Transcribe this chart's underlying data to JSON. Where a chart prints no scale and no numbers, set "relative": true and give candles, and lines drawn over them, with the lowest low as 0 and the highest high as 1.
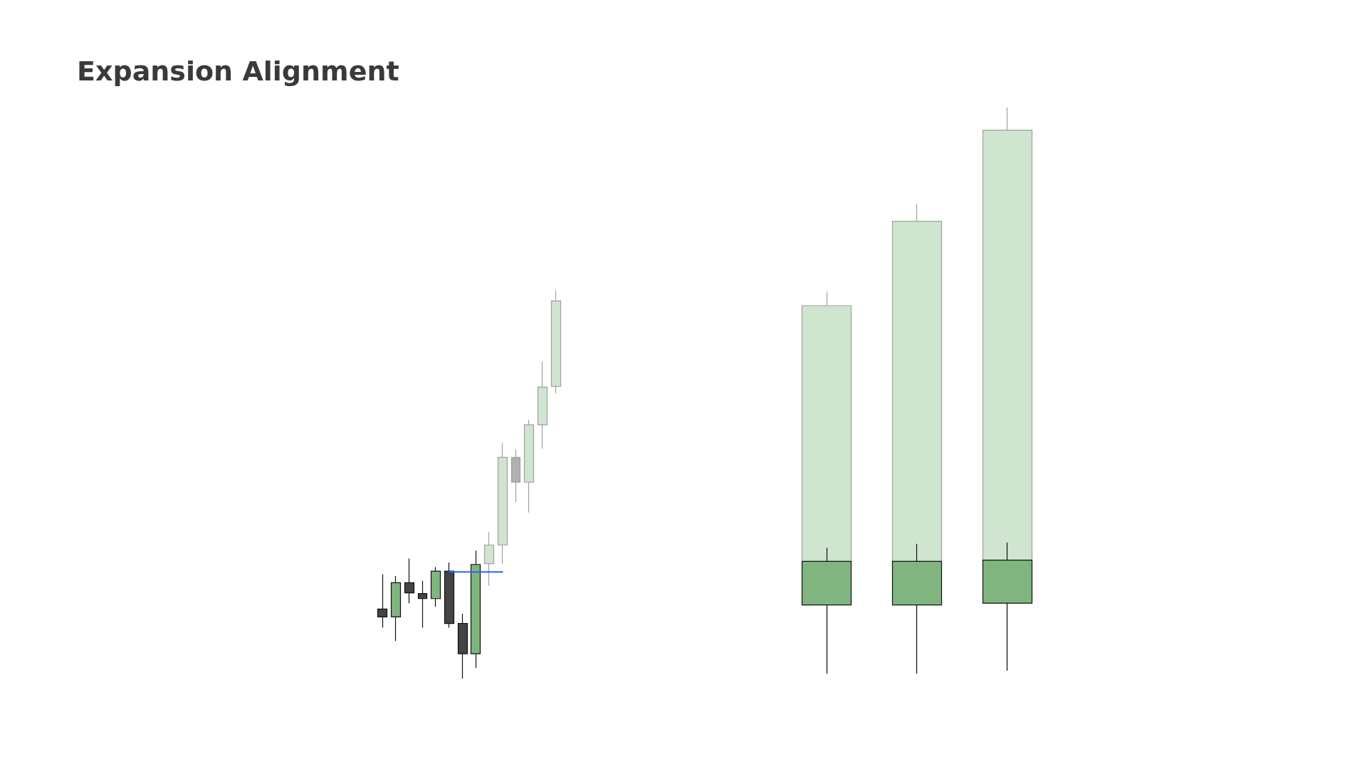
{
  "chart_data": [
    {
      "type": "candlestick",
      "title": "Expansion Alignment",
      "relative": true,
      "categories": [
        null,
        null,
        null,
        null,
        null,
        null,
        null,
        null,
        null,
        null,
        null,
        null,
        null,
        null
      ],
      "ohlc": [
        [
          0.179,
          0.269,
          0.131,
          0.159
        ],
        [
          0.159,
          0.264,
          0.097,
          0.247
        ],
        [
          0.247,
          0.309,
          0.194,
          0.221
        ],
        [
          0.219,
          0.252,
          0.131,
          0.206
        ],
        [
          0.206,
          0.287,
          0.185,
          0.277
        ],
        [
          0.277,
          0.299,
          0.131,
          0.142
        ],
        [
          0.142,
          0.167,
          0,
          0.064
        ],
        [
          0.064,
          0.33,
          0.027,
          0.294
        ],
        [
          0.296,
          0.377,
          0.239,
          0.344
        ],
        [
          0.344,
          0.607,
          0.295,
          0.57
        ],
        [
          0.57,
          0.59,
          0.455,
          0.506
        ],
        [
          0.506,
          0.667,
          0.428,
          0.654
        ],
        [
          0.654,
          0.817,
          0.592,
          0.751
        ],
        [
          0.753,
          1,
          0.735,
          0.973
        ]
      ],
      "colors": [
        "#444444",
        "#80b580",
        "#444444",
        "#444444",
        "#80b580",
        "#444444",
        "#444444",
        "#80b580",
        "#cfe5cf",
        "#cfe5cf",
        "#b0b0b0",
        "#cfe5cf",
        "#cfe5cf",
        "#cfe5cf"
      ],
      "series": [
        {
          "type": "line",
          "color": "#2962ff",
          "values": [
            null,
            null,
            null,
            null,
            null,
            0.275,
            0.275,
            0.275,
            0.275,
            0.275,
            null,
            null,
            null,
            null
          ]
        }
      ]
    },
    {
      "type": "candlestick",
      "relative": true,
      "categories": [
        null,
        null,
        null
      ],
      "color": "#cfe5cf",
      "ohlc": [
        [
          0.198,
          0.675,
          0,
          0.65
        ],
        [
          0.198,
          0.83,
          0,
          0.799
        ],
        [
          0.2,
          1,
          0.005,
          0.96
        ]
      ]
    },
    {
      "type": "candlestick",
      "relative": true,
      "categories": [
        null,
        null,
        null
      ],
      "color": "#80b580",
      "ohlc": [
        [
          0.524,
          0.961,
          0,
          0.857
        ],
        [
          0.524,
          0.991,
          0,
          0.857
        ],
        [
          0.537,
          1,
          0.022,
          0.866
        ]
      ]
    }
  ]
}
